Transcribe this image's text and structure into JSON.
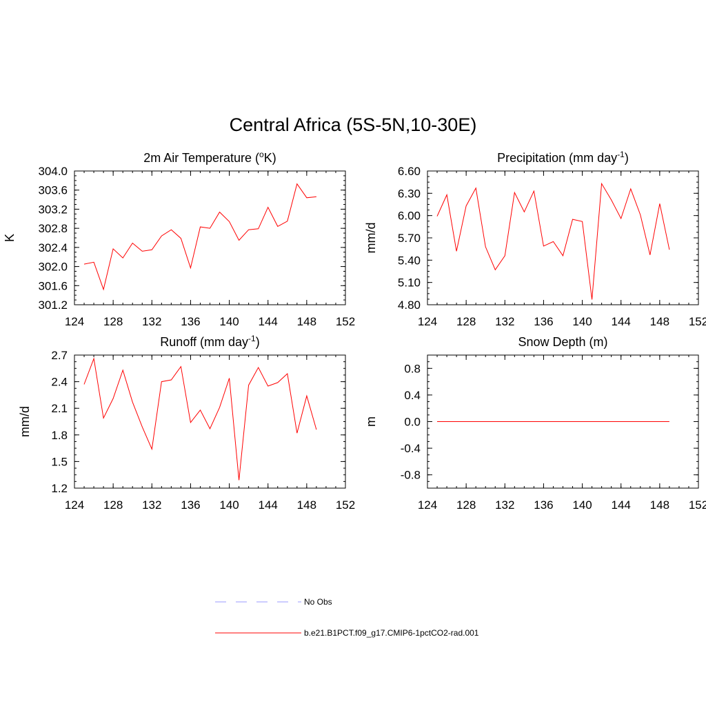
{
  "figure": {
    "title": "Central Africa (5S-5N,10-30E)"
  },
  "legend": {
    "entries": [
      {
        "label": "No Obs",
        "color": "#9999ff",
        "dash": "dashed"
      },
      {
        "label": "b.e21.B1PCT.f09_g17.CMIP6-1pctCO2-rad.001",
        "color": "#ff0000",
        "dash": "solid"
      }
    ]
  },
  "chart_data": [
    {
      "type": "line",
      "title_main": "2m Air Temperature (",
      "title_sup": "o",
      "title_tail": "K)",
      "ylabel": "K",
      "xlim": [
        124,
        152
      ],
      "ylim": [
        301.2,
        304.0
      ],
      "xticks": [
        "124",
        "128",
        "132",
        "136",
        "140",
        "144",
        "148",
        "152"
      ],
      "yticks": [
        "301.2",
        "301.6",
        "302.0",
        "302.4",
        "302.8",
        "303.2",
        "303.6",
        "304.0"
      ],
      "series": [
        {
          "color": "#ff0000",
          "x": [
            125,
            126,
            127,
            128,
            129,
            130,
            131,
            132,
            133,
            134,
            135,
            136,
            137,
            138,
            139,
            140,
            141,
            142,
            143,
            144,
            145,
            146,
            147,
            148,
            149
          ],
          "y": [
            302.05,
            302.09,
            301.52,
            302.37,
            302.18,
            302.49,
            302.32,
            302.35,
            302.64,
            302.77,
            302.59,
            301.97,
            302.83,
            302.8,
            303.14,
            302.94,
            302.55,
            302.77,
            302.79,
            303.24,
            302.84,
            302.95,
            303.73,
            303.44,
            303.46
          ]
        }
      ]
    },
    {
      "type": "line",
      "title_main": "Precipitation (mm day",
      "title_sup": "-1",
      "title_tail": ")",
      "ylabel": "mm/d",
      "xlim": [
        124,
        152
      ],
      "ylim": [
        4.8,
        6.6
      ],
      "xticks": [
        "124",
        "128",
        "132",
        "136",
        "140",
        "144",
        "148",
        "152"
      ],
      "yticks": [
        "4.80",
        "5.10",
        "5.40",
        "5.70",
        "6.00",
        "6.30",
        "6.60"
      ],
      "series": [
        {
          "color": "#ff0000",
          "x": [
            125,
            126,
            127,
            128,
            129,
            130,
            131,
            132,
            133,
            134,
            135,
            136,
            137,
            138,
            139,
            140,
            141,
            142,
            143,
            144,
            145,
            146,
            147,
            148,
            149
          ],
          "y": [
            5.99,
            6.28,
            5.52,
            6.13,
            6.37,
            5.58,
            5.27,
            5.46,
            6.31,
            6.05,
            6.33,
            5.59,
            5.65,
            5.46,
            5.95,
            5.92,
            4.87,
            6.43,
            6.21,
            5.96,
            6.36,
            6.01,
            5.47,
            6.16,
            5.54
          ]
        }
      ]
    },
    {
      "type": "line",
      "title_main": "Runoff (mm day",
      "title_sup": "-1",
      "title_tail": ")",
      "ylabel": "mm/d",
      "xlim": [
        124,
        152
      ],
      "ylim": [
        1.2,
        2.7
      ],
      "xticks": [
        "124",
        "128",
        "132",
        "136",
        "140",
        "144",
        "148",
        "152"
      ],
      "yticks": [
        "1.2",
        "1.5",
        "1.8",
        "2.1",
        "2.4",
        "2.7"
      ],
      "series": [
        {
          "color": "#ff0000",
          "x": [
            125,
            126,
            127,
            128,
            129,
            130,
            131,
            132,
            133,
            134,
            135,
            136,
            137,
            138,
            139,
            140,
            141,
            142,
            143,
            144,
            145,
            146,
            147,
            148,
            149
          ],
          "y": [
            2.37,
            2.66,
            1.99,
            2.21,
            2.53,
            2.17,
            1.89,
            1.64,
            2.4,
            2.42,
            2.57,
            1.94,
            2.08,
            1.87,
            2.11,
            2.44,
            1.29,
            2.36,
            2.56,
            2.35,
            2.39,
            2.49,
            1.82,
            2.24,
            1.86
          ]
        }
      ]
    },
    {
      "type": "line",
      "title_main": "Snow Depth (m)",
      "title_sup": "",
      "title_tail": "",
      "ylabel": "m",
      "xlim": [
        124,
        152
      ],
      "ylim": [
        -1.0,
        1.0
      ],
      "xticks": [
        "124",
        "128",
        "132",
        "136",
        "140",
        "144",
        "148",
        "152"
      ],
      "yticks": [
        "-0.8",
        "-0.4",
        "0.0",
        "0.4",
        "0.8"
      ],
      "series": [
        {
          "color": "#ff0000",
          "x": [
            125,
            126,
            127,
            128,
            129,
            130,
            131,
            132,
            133,
            134,
            135,
            136,
            137,
            138,
            139,
            140,
            141,
            142,
            143,
            144,
            145,
            146,
            147,
            148,
            149
          ],
          "y": [
            0,
            0,
            0,
            0,
            0,
            0,
            0,
            0,
            0,
            0,
            0,
            0,
            0,
            0,
            0,
            0,
            0,
            0,
            0,
            0,
            0,
            0,
            0,
            0,
            0
          ]
        }
      ]
    }
  ]
}
